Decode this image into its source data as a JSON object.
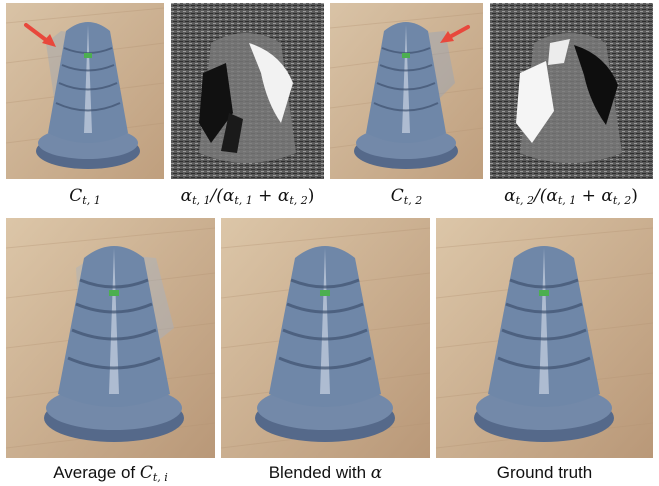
{
  "figure": {
    "top_row": [
      {
        "caption_prefix": "C",
        "caption_sub": "t, 1",
        "kind": "render",
        "artifact": "left",
        "arrow": "left"
      },
      {
        "caption_num": "α",
        "caption_num_sub": "t, 1",
        "caption_rest": "/(α",
        "caption_sub2": "t, 1",
        "caption_plus": " + α",
        "caption_sub3": "t, 2",
        "caption_close": ")",
        "kind": "alpha",
        "bright": "right"
      },
      {
        "caption_prefix": "C",
        "caption_sub": "t, 2",
        "kind": "render",
        "artifact": "right",
        "arrow": "right"
      },
      {
        "caption_num": "α",
        "caption_num_sub": "t, 2",
        "caption_rest": "/(α",
        "caption_sub2": "t, 1",
        "caption_plus": " + α",
        "caption_sub3": "t, 2",
        "caption_close": ")",
        "kind": "alpha",
        "bright": "left"
      }
    ],
    "bottom_row": [
      {
        "caption_text": "Average of ",
        "caption_math": "C",
        "caption_sub": "t, i",
        "artifact": "ghost"
      },
      {
        "caption_text": "Blended with ",
        "caption_math": "α",
        "artifact": "none"
      },
      {
        "caption_text": "Ground truth",
        "artifact": "none"
      }
    ],
    "colors": {
      "arrow": "#e8483c",
      "wood": "#c9ad8e",
      "model_blue": "#6f87a8"
    }
  }
}
